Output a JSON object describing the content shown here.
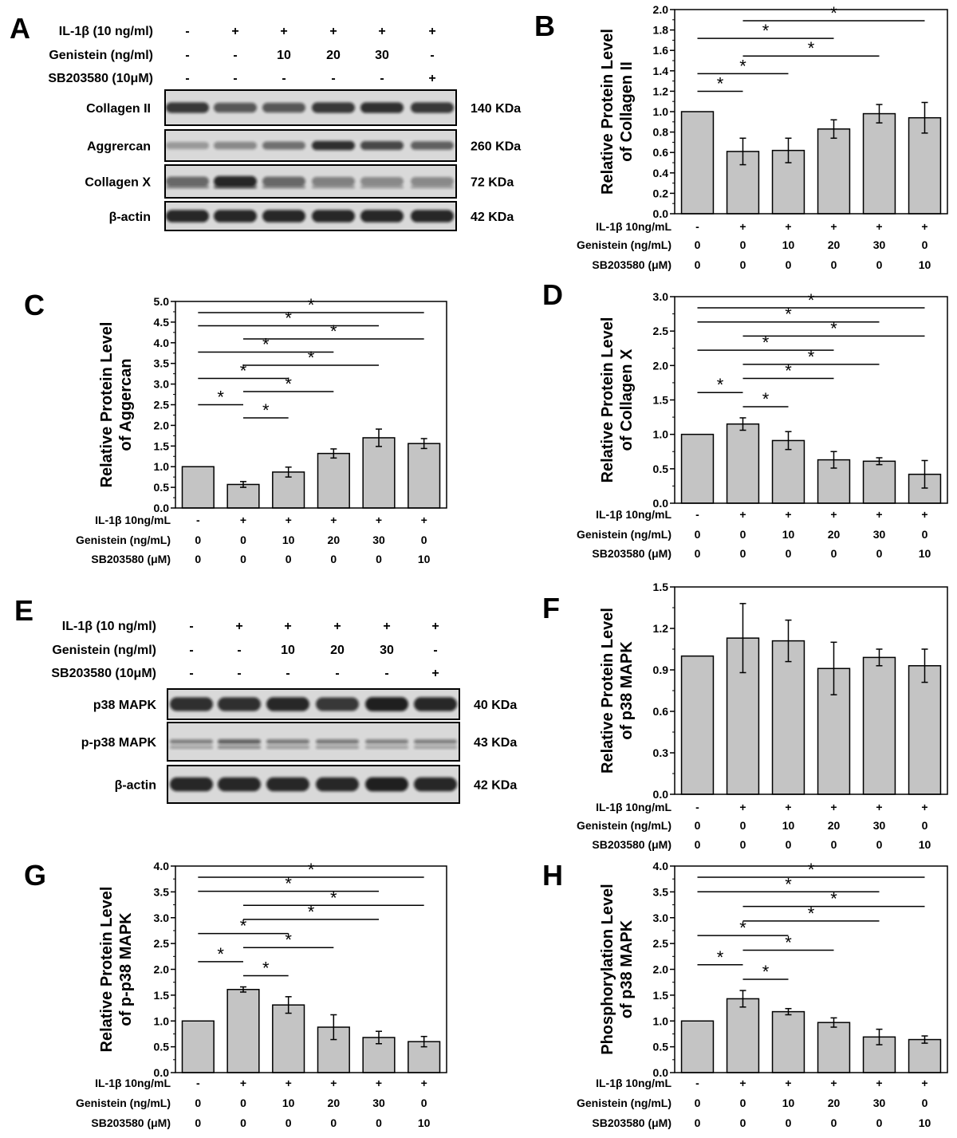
{
  "figure": {
    "panel_letters": [
      "A",
      "B",
      "C",
      "D",
      "E",
      "F",
      "G",
      "H"
    ]
  },
  "blot_A": {
    "conditions": [
      {
        "label": "IL-1β (10 ng/ml)",
        "values": [
          "-",
          "+",
          "+",
          "+",
          "+",
          "+"
        ]
      },
      {
        "label": "Genistein (ng/ml)",
        "values": [
          "-",
          "-",
          "10",
          "20",
          "30",
          "-"
        ]
      },
      {
        "label": "SB203580 (10μM)",
        "values": [
          "-",
          "-",
          "-",
          "-",
          "-",
          "+"
        ]
      }
    ],
    "bands": [
      {
        "protein": "Collagen II",
        "size": "140 KDa"
      },
      {
        "protein": "Aggrercan",
        "size": "260 KDa"
      },
      {
        "protein": "Collagen X",
        "size": "72 KDa"
      },
      {
        "protein": "β-actin",
        "size": "42 KDa"
      }
    ]
  },
  "blot_E": {
    "conditions": [
      {
        "label": "IL-1β (10 ng/ml)",
        "values": [
          "-",
          "+",
          "+",
          "+",
          "+",
          "+"
        ]
      },
      {
        "label": "Genistein (ng/ml)",
        "values": [
          "-",
          "-",
          "10",
          "20",
          "30",
          "-"
        ]
      },
      {
        "label": "SB203580 (10μM)",
        "values": [
          "-",
          "-",
          "-",
          "-",
          "-",
          "+"
        ]
      }
    ],
    "bands": [
      {
        "protein": "p38 MAPK",
        "size": "40 KDa"
      },
      {
        "protein": "p-p38 MAPK",
        "size": "43 KDa"
      },
      {
        "protein": "β-actin",
        "size": "42 KDa"
      }
    ]
  },
  "bar_conditions": [
    {
      "label": "IL-1β 10ng/mL",
      "values": [
        "-",
        "+",
        "+",
        "+",
        "+",
        "+"
      ]
    },
    {
      "label": "Genistein (ng/mL)",
      "values": [
        "0",
        "0",
        "10",
        "20",
        "30",
        "0"
      ]
    },
    {
      "label": "SB203580 (μM)",
      "values": [
        "0",
        "0",
        "0",
        "0",
        "0",
        "10"
      ]
    }
  ],
  "chart_data": [
    {
      "panel": "B",
      "type": "bar",
      "ylabel": [
        "Relative Protein Level",
        "of Collagen II"
      ],
      "ylim": [
        0,
        2.0
      ],
      "yticks": [
        "0.0",
        "0.2",
        "0.4",
        "0.6",
        "0.8",
        "1.0",
        "1.2",
        "1.4",
        "1.6",
        "1.8",
        "2.0"
      ],
      "values": [
        1.0,
        0.61,
        0.62,
        0.83,
        0.98,
        0.94
      ],
      "errors": [
        0,
        0.13,
        0.12,
        0.09,
        0.09,
        0.15
      ],
      "significance": [
        [
          1,
          2
        ],
        [
          1,
          3
        ],
        [
          1,
          4
        ],
        [
          2,
          5
        ],
        [
          2,
          6
        ]
      ]
    },
    {
      "panel": "C",
      "type": "bar",
      "ylabel": [
        "Relative Protein Level",
        "of Aggercan"
      ],
      "ylim": [
        0,
        5.0
      ],
      "yticks": [
        "0.0",
        "0.5",
        "1.0",
        "1.5",
        "2.0",
        "2.5",
        "3.0",
        "3.5",
        "4.0",
        "4.5",
        "5.0"
      ],
      "values": [
        1.0,
        0.57,
        0.87,
        1.32,
        1.7,
        1.56
      ],
      "errors": [
        0,
        0.07,
        0.12,
        0.11,
        0.21,
        0.12
      ],
      "significance": [
        [
          1,
          2
        ],
        [
          1,
          3
        ],
        [
          1,
          4
        ],
        [
          1,
          5
        ],
        [
          1,
          6
        ],
        [
          2,
          3
        ],
        [
          2,
          4
        ],
        [
          2,
          5
        ],
        [
          2,
          6
        ]
      ]
    },
    {
      "panel": "D",
      "type": "bar",
      "ylabel": [
        "Relative Protein Level",
        "of Collagen X"
      ],
      "ylim": [
        0,
        3.0
      ],
      "yticks": [
        "0.0",
        "0.5",
        "1.0",
        "1.5",
        "2.0",
        "2.5",
        "3.0"
      ],
      "values": [
        1.0,
        1.15,
        0.91,
        0.63,
        0.61,
        0.42
      ],
      "errors": [
        0,
        0.09,
        0.13,
        0.12,
        0.05,
        0.2
      ],
      "significance": [
        [
          1,
          2
        ],
        [
          1,
          4
        ],
        [
          1,
          5
        ],
        [
          1,
          6
        ],
        [
          2,
          3
        ],
        [
          2,
          4
        ],
        [
          2,
          5
        ],
        [
          2,
          6
        ]
      ]
    },
    {
      "panel": "F",
      "type": "bar",
      "ylabel": [
        "Relative Protein Level",
        "of p38 MAPK"
      ],
      "ylim": [
        0,
        1.5
      ],
      "yticks": [
        "0.0",
        "0.3",
        "0.6",
        "0.9",
        "1.2",
        "1.5"
      ],
      "values": [
        1.0,
        1.13,
        1.11,
        0.91,
        0.99,
        0.93
      ],
      "errors": [
        0,
        0.25,
        0.15,
        0.19,
        0.06,
        0.12
      ],
      "significance": []
    },
    {
      "panel": "G",
      "type": "bar",
      "ylabel": [
        "Relative Protein Level",
        "of p-p38 MAPK"
      ],
      "ylim": [
        0,
        4.0
      ],
      "yticks": [
        "0.0",
        "0.5",
        "1.0",
        "1.5",
        "2.0",
        "2.5",
        "3.0",
        "3.5",
        "4.0"
      ],
      "values": [
        1.0,
        1.61,
        1.31,
        0.88,
        0.68,
        0.6
      ],
      "errors": [
        0,
        0.05,
        0.16,
        0.24,
        0.12,
        0.1
      ],
      "significance": [
        [
          1,
          2
        ],
        [
          1,
          3
        ],
        [
          1,
          5
        ],
        [
          1,
          6
        ],
        [
          2,
          3
        ],
        [
          2,
          4
        ],
        [
          2,
          5
        ],
        [
          2,
          6
        ]
      ]
    },
    {
      "panel": "H",
      "type": "bar",
      "ylabel": [
        "Phosphorylation Level",
        "of p38 MAPK"
      ],
      "ylim": [
        0,
        4.0
      ],
      "yticks": [
        "0.0",
        "0.5",
        "1.0",
        "1.5",
        "2.0",
        "2.5",
        "3.0",
        "3.5",
        "4.0"
      ],
      "values": [
        1.0,
        1.43,
        1.18,
        0.97,
        0.69,
        0.64
      ],
      "errors": [
        0,
        0.16,
        0.06,
        0.09,
        0.15,
        0.07
      ],
      "significance": [
        [
          1,
          2
        ],
        [
          1,
          3
        ],
        [
          1,
          5
        ],
        [
          1,
          6
        ],
        [
          2,
          3
        ],
        [
          2,
          4
        ],
        [
          2,
          5
        ],
        [
          2,
          6
        ]
      ]
    }
  ]
}
